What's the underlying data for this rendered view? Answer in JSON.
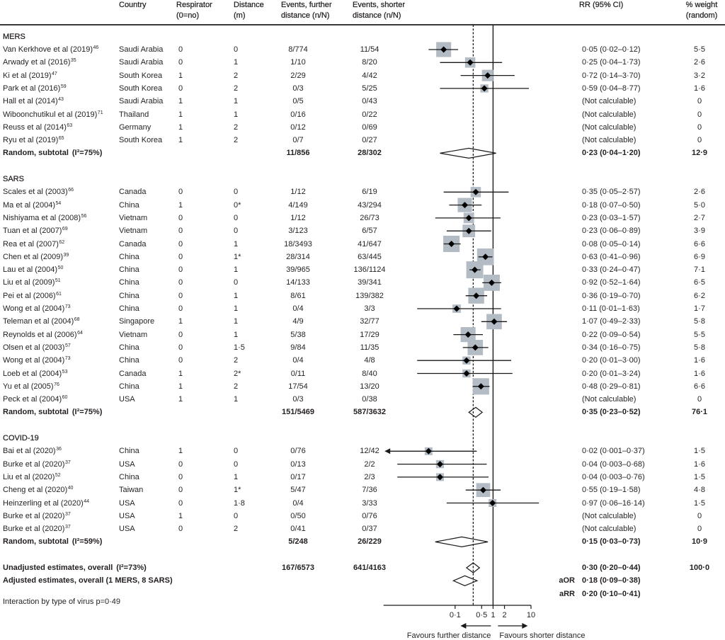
{
  "chart_data": {
    "type": "scatter",
    "subtype": "forest-plot",
    "title": "",
    "x_scale": "log",
    "xlim": [
      0.0013,
      10
    ],
    "xticks": [
      0.1,
      0.5,
      1,
      2,
      10
    ],
    "xtick_labels": [
      "0·1",
      "0·5",
      "1",
      "2",
      "10"
    ],
    "reference_value": 1,
    "pooled_estimate_line": 0.3,
    "arrow_labels": {
      "left": "Favours further distance",
      "right": "Favours shorter distance"
    },
    "columns": {
      "country": [
        "Country"
      ],
      "respirator": [
        "Respirator",
        "(0=no)"
      ],
      "distance": [
        "Distance",
        "(m)"
      ],
      "events_further": [
        "Events, further",
        "distance (n/N)"
      ],
      "events_shorter": [
        "Events, shorter",
        "distance (n/N)"
      ],
      "rr": [
        "RR (95% CI)"
      ],
      "weight": [
        "% weight",
        "(random)"
      ]
    },
    "groups": [
      {
        "name": "MERS",
        "studies": [
          {
            "study": "Van Kerkhove et al (2019)",
            "ref": "46",
            "country": "Saudi Arabia",
            "respirator": "0",
            "distance": "0",
            "events_further": "8/774",
            "events_shorter": "11/54",
            "rr": 0.05,
            "ci": [
              0.02,
              0.12
            ],
            "rr_text": "0·05 (0·02–0·12)",
            "weight": 5.5,
            "weight_text": "5·5"
          },
          {
            "study": "Arwady et al (2016)",
            "ref": "35",
            "country": "Saudi Arabia",
            "respirator": "0",
            "distance": "1",
            "events_further": "1/10",
            "events_shorter": "8/20",
            "rr": 0.25,
            "ci": [
              0.04,
              1.73
            ],
            "rr_text": "0·25 (0·04–1·73)",
            "weight": 2.6,
            "weight_text": "2·6"
          },
          {
            "study": "Ki et al (2019)",
            "ref": "47",
            "country": "South Korea",
            "respirator": "1",
            "distance": "2",
            "events_further": "2/29",
            "events_shorter": "4/42",
            "rr": 0.72,
            "ci": [
              0.14,
              3.7
            ],
            "rr_text": "0·72 (0·14–3·70)",
            "weight": 3.2,
            "weight_text": "3·2"
          },
          {
            "study": "Park et al (2016)",
            "ref": "59",
            "country": "South Korea",
            "respirator": "0",
            "distance": "2",
            "events_further": "0/3",
            "events_shorter": "5/25",
            "rr": 0.59,
            "ci": [
              0.04,
              8.77
            ],
            "rr_text": "0·59 (0·04–8·77)",
            "weight": 1.6,
            "weight_text": "1·6"
          },
          {
            "study": "Hall et al (2014)",
            "ref": "43",
            "country": "Saudi Arabia",
            "respirator": "1",
            "distance": "1",
            "events_further": "0/5",
            "events_shorter": "0/43",
            "rr": null,
            "ci": null,
            "rr_text": "(Not calculable)",
            "weight": 0,
            "weight_text": "0"
          },
          {
            "study": "Wiboonchutikul et al (2019)",
            "ref": "71",
            "country": "Thailand",
            "respirator": "1",
            "distance": "1",
            "events_further": "0/16",
            "events_shorter": "0/22",
            "rr": null,
            "ci": null,
            "rr_text": "(Not calculable)",
            "weight": 0,
            "weight_text": "0"
          },
          {
            "study": "Reuss et al (2014)",
            "ref": "63",
            "country": "Germany",
            "respirator": "1",
            "distance": "2",
            "events_further": "0/12",
            "events_shorter": "0/69",
            "rr": null,
            "ci": null,
            "rr_text": "(Not calculable)",
            "weight": 0,
            "weight_text": "0"
          },
          {
            "study": "Ryu et al (2019)",
            "ref": "65",
            "country": "South Korea",
            "respirator": "1",
            "distance": "2",
            "events_further": "0/7",
            "events_shorter": "0/27",
            "rr": null,
            "ci": null,
            "rr_text": "(Not calculable)",
            "weight": 0,
            "weight_text": "0"
          }
        ],
        "subtotal": {
          "label": "Random, subtotal",
          "heterogeneity": "(I²=75%)",
          "events_further": "11/856",
          "events_shorter": "28/302",
          "rr": 0.23,
          "ci": [
            0.04,
            1.2
          ],
          "rr_text": "0·23 (0·04–1·20)",
          "weight_text": "12·9"
        }
      },
      {
        "name": "SARS",
        "studies": [
          {
            "study": "Scales et al (2003)",
            "ref": "66",
            "country": "Canada",
            "respirator": "0",
            "distance": "0",
            "events_further": "1/12",
            "events_shorter": "6/19",
            "rr": 0.35,
            "ci": [
              0.05,
              2.57
            ],
            "rr_text": "0·35 (0·05–2·57)",
            "weight": 2.6,
            "weight_text": "2·6"
          },
          {
            "study": "Ma et al (2004)",
            "ref": "54",
            "country": "China",
            "respirator": "1",
            "distance": "0*",
            "events_further": "4/149",
            "events_shorter": "43/294",
            "rr": 0.18,
            "ci": [
              0.07,
              0.5
            ],
            "rr_text": "0·18 (0·07–0·50)",
            "weight": 5.0,
            "weight_text": "5·0"
          },
          {
            "study": "Nishiyama et al (2008)",
            "ref": "56",
            "country": "Vietnam",
            "respirator": "0",
            "distance": "0",
            "events_further": "1/12",
            "events_shorter": "26/73",
            "rr": 0.23,
            "ci": [
              0.03,
              1.57
            ],
            "rr_text": "0·23 (0·03–1·57)",
            "weight": 2.7,
            "weight_text": "2·7"
          },
          {
            "study": "Tuan et al (2007)",
            "ref": "69",
            "country": "Vietnam",
            "respirator": "0",
            "distance": "0",
            "events_further": "3/123",
            "events_shorter": "6/57",
            "rr": 0.23,
            "ci": [
              0.06,
              0.89
            ],
            "rr_text": "0·23 (0·06–0·89)",
            "weight": 3.9,
            "weight_text": "3·9"
          },
          {
            "study": "Rea et al (2007)",
            "ref": "62",
            "country": "Canada",
            "respirator": "0",
            "distance": "1",
            "events_further": "18/3493",
            "events_shorter": "41/647",
            "rr": 0.08,
            "ci": [
              0.05,
              0.14
            ],
            "rr_text": "0·08 (0·05–0·14)",
            "weight": 6.6,
            "weight_text": "6·6"
          },
          {
            "study": "Chen et al (2009)",
            "ref": "39",
            "country": "China",
            "respirator": "0",
            "distance": "1*",
            "events_further": "28/314",
            "events_shorter": "63/445",
            "rr": 0.63,
            "ci": [
              0.41,
              0.96
            ],
            "rr_text": "0·63 (0·41–0·96)",
            "weight": 6.9,
            "weight_text": "6·9"
          },
          {
            "study": "Lau et al (2004)",
            "ref": "50",
            "country": "China",
            "respirator": "0",
            "distance": "1",
            "events_further": "39/965",
            "events_shorter": "136/1124",
            "rr": 0.33,
            "ci": [
              0.24,
              0.47
            ],
            "rr_text": "0·33 (0·24–0·47)",
            "weight": 7.1,
            "weight_text": "7·1"
          },
          {
            "study": "Liu et al (2009)",
            "ref": "51",
            "country": "China",
            "respirator": "0",
            "distance": "0",
            "events_further": "14/133",
            "events_shorter": "39/341",
            "rr": 0.92,
            "ci": [
              0.52,
              1.64
            ],
            "rr_text": "0·92 (0·52–1·64)",
            "weight": 6.5,
            "weight_text": "6·5"
          },
          {
            "study": "Pei et al (2006)",
            "ref": "61",
            "country": "China",
            "respirator": "0",
            "distance": "1",
            "events_further": "8/61",
            "events_shorter": "139/382",
            "rr": 0.36,
            "ci": [
              0.19,
              0.7
            ],
            "rr_text": "0·36 (0·19–0·70)",
            "weight": 6.2,
            "weight_text": "6·2"
          },
          {
            "study": "Wong et al (2004)",
            "ref": "73",
            "country": "China",
            "respirator": "0",
            "distance": "1",
            "events_further": "0/4",
            "events_shorter": "3/3",
            "rr": 0.11,
            "ci": [
              0.01,
              1.63
            ],
            "rr_text": "0·11 (0·01–1·63)",
            "weight": 1.7,
            "weight_text": "1·7"
          },
          {
            "study": "Teleman et al (2004)",
            "ref": "68",
            "country": "Singapore",
            "respirator": "1",
            "distance": "1",
            "events_further": "4/9",
            "events_shorter": "32/77",
            "rr": 1.07,
            "ci": [
              0.49,
              2.33
            ],
            "rr_text": "1·07 (0·49–2·33)",
            "weight": 5.8,
            "weight_text": "5·8"
          },
          {
            "study": "Reynolds et al (2006)",
            "ref": "64",
            "country": "Vietnam",
            "respirator": "0",
            "distance": "1",
            "events_further": "5/38",
            "events_shorter": "17/29",
            "rr": 0.22,
            "ci": [
              0.09,
              0.54
            ],
            "rr_text": "0·22 (0·09–0·54)",
            "weight": 5.5,
            "weight_text": "5·5"
          },
          {
            "study": "Olsen et al (2003)",
            "ref": "57",
            "country": "China",
            "respirator": "0",
            "distance": "1·5",
            "events_further": "9/84",
            "events_shorter": "11/35",
            "rr": 0.34,
            "ci": [
              0.16,
              0.75
            ],
            "rr_text": "0·34 (0·16–0·75)",
            "weight": 5.8,
            "weight_text": "5·8"
          },
          {
            "study": "Wong et al (2004)",
            "ref": "73",
            "country": "China",
            "respirator": "0",
            "distance": "2",
            "events_further": "0/4",
            "events_shorter": "4/8",
            "rr": 0.2,
            "ci": [
              0.01,
              3.0
            ],
            "rr_text": "0·20 (0·01–3·00)",
            "weight": 1.6,
            "weight_text": "1·6"
          },
          {
            "study": "Loeb et al (2004)",
            "ref": "53",
            "country": "Canada",
            "respirator": "1",
            "distance": "2*",
            "events_further": "0/11",
            "events_shorter": "8/40",
            "rr": 0.2,
            "ci": [
              0.01,
              3.24
            ],
            "rr_text": "0·20 (0·01–3·24)",
            "weight": 1.6,
            "weight_text": "1·6"
          },
          {
            "study": "Yu et al (2005)",
            "ref": "76",
            "country": "China",
            "respirator": "1",
            "distance": "2",
            "events_further": "17/54",
            "events_shorter": "13/20",
            "rr": 0.48,
            "ci": [
              0.29,
              0.81
            ],
            "rr_text": "0·48 (0·29–0·81)",
            "weight": 6.6,
            "weight_text": "6·6"
          },
          {
            "study": "Peck et al (2004)",
            "ref": "60",
            "country": "USA",
            "respirator": "1",
            "distance": "1",
            "events_further": "0/3",
            "events_shorter": "0/38",
            "rr": null,
            "ci": null,
            "rr_text": "(Not calculable)",
            "weight": 0,
            "weight_text": "0"
          }
        ],
        "subtotal": {
          "label": "Random, subtotal",
          "heterogeneity": "(I²=75%)",
          "events_further": "151/5469",
          "events_shorter": "587/3632",
          "rr": 0.35,
          "ci": [
            0.23,
            0.52
          ],
          "rr_text": "0·35 (0·23–0·52)",
          "weight_text": "76·1"
        }
      },
      {
        "name": "COVID-19",
        "studies": [
          {
            "study": "Bai et al (2020)",
            "ref": "36",
            "country": "China",
            "respirator": "1",
            "distance": "0",
            "events_further": "0/76",
            "events_shorter": "12/42",
            "rr": 0.02,
            "ci": [
              0.001,
              0.37
            ],
            "rr_text": "0·02 (0·001–0·37)",
            "weight": 1.5,
            "weight_text": "1·5"
          },
          {
            "study": "Burke et al (2020)",
            "ref": "37",
            "country": "USA",
            "respirator": "0",
            "distance": "0",
            "events_further": "0/13",
            "events_shorter": "2/2",
            "rr": 0.04,
            "ci": [
              0.003,
              0.68
            ],
            "rr_text": "0·04 (0·003–0·68)",
            "weight": 1.6,
            "weight_text": "1·6"
          },
          {
            "study": "Liu et al (2020)",
            "ref": "52",
            "country": "China",
            "respirator": "0",
            "distance": "1",
            "events_further": "0/17",
            "events_shorter": "2/3",
            "rr": 0.04,
            "ci": [
              0.003,
              0.76
            ],
            "rr_text": "0·04 (0·003–0·76)",
            "weight": 1.5,
            "weight_text": "1·5"
          },
          {
            "study": "Cheng et al (2020)",
            "ref": "40",
            "country": "Taiwan",
            "respirator": "0",
            "distance": "1*",
            "events_further": "5/47",
            "events_shorter": "7/36",
            "rr": 0.55,
            "ci": [
              0.19,
              1.58
            ],
            "rr_text": "0·55 (0·19–1·58)",
            "weight": 4.8,
            "weight_text": "4·8"
          },
          {
            "study": "Heinzerling et al (2020)",
            "ref": "44",
            "country": "USA",
            "respirator": "0",
            "distance": "1·8",
            "events_further": "0/4",
            "events_shorter": "3/33",
            "rr": 0.97,
            "ci": [
              0.06,
              16.14
            ],
            "rr_text": "0·97 (0·06–16·14)",
            "weight": 1.5,
            "weight_text": "1·5"
          },
          {
            "study": "Burke et al (2020)",
            "ref": "37",
            "country": "USA",
            "respirator": "1",
            "distance": "0",
            "events_further": "0/50",
            "events_shorter": "0/76",
            "rr": null,
            "ci": null,
            "rr_text": "(Not calculable)",
            "weight": 0,
            "weight_text": "0"
          },
          {
            "study": "Burke et al (2020)",
            "ref": "37",
            "country": "USA",
            "respirator": "0",
            "distance": "2",
            "events_further": "0/41",
            "events_shorter": "0/37",
            "rr": null,
            "ci": null,
            "rr_text": "(Not calculable)",
            "weight": 0,
            "weight_text": "0"
          }
        ],
        "subtotal": {
          "label": "Random, subtotal",
          "heterogeneity": "(I²=59%)",
          "events_further": "5/248",
          "events_shorter": "26/229",
          "rr": 0.15,
          "ci": [
            0.03,
            0.73
          ],
          "rr_text": "0·15 (0·03–0·73)",
          "weight_text": "10·9"
        }
      }
    ],
    "overall": {
      "label": "Unadjusted estimates, overall",
      "heterogeneity": "(I²=73%)",
      "events_further": "167/6573",
      "events_shorter": "641/4163",
      "rr": 0.3,
      "ci": [
        0.2,
        0.44
      ],
      "rr_text": "0·30 (0·20–0·44)",
      "weight_text": "100·0"
    },
    "adjusted": {
      "label": "Adjusted estimates, overall (1 MERS, 8 SARS)",
      "aor": {
        "label": "aOR",
        "value": 0.18,
        "ci": [
          0.09,
          0.38
        ],
        "text": "0·18 (0·09–0·38)",
        "diamond": true
      },
      "arr": {
        "label": "aRR",
        "value": 0.2,
        "ci": [
          0.1,
          0.41
        ],
        "text": "0·20 (0·10–0·41)",
        "diamond": false
      }
    },
    "interaction": "Interaction by type of virus p=0·49"
  }
}
